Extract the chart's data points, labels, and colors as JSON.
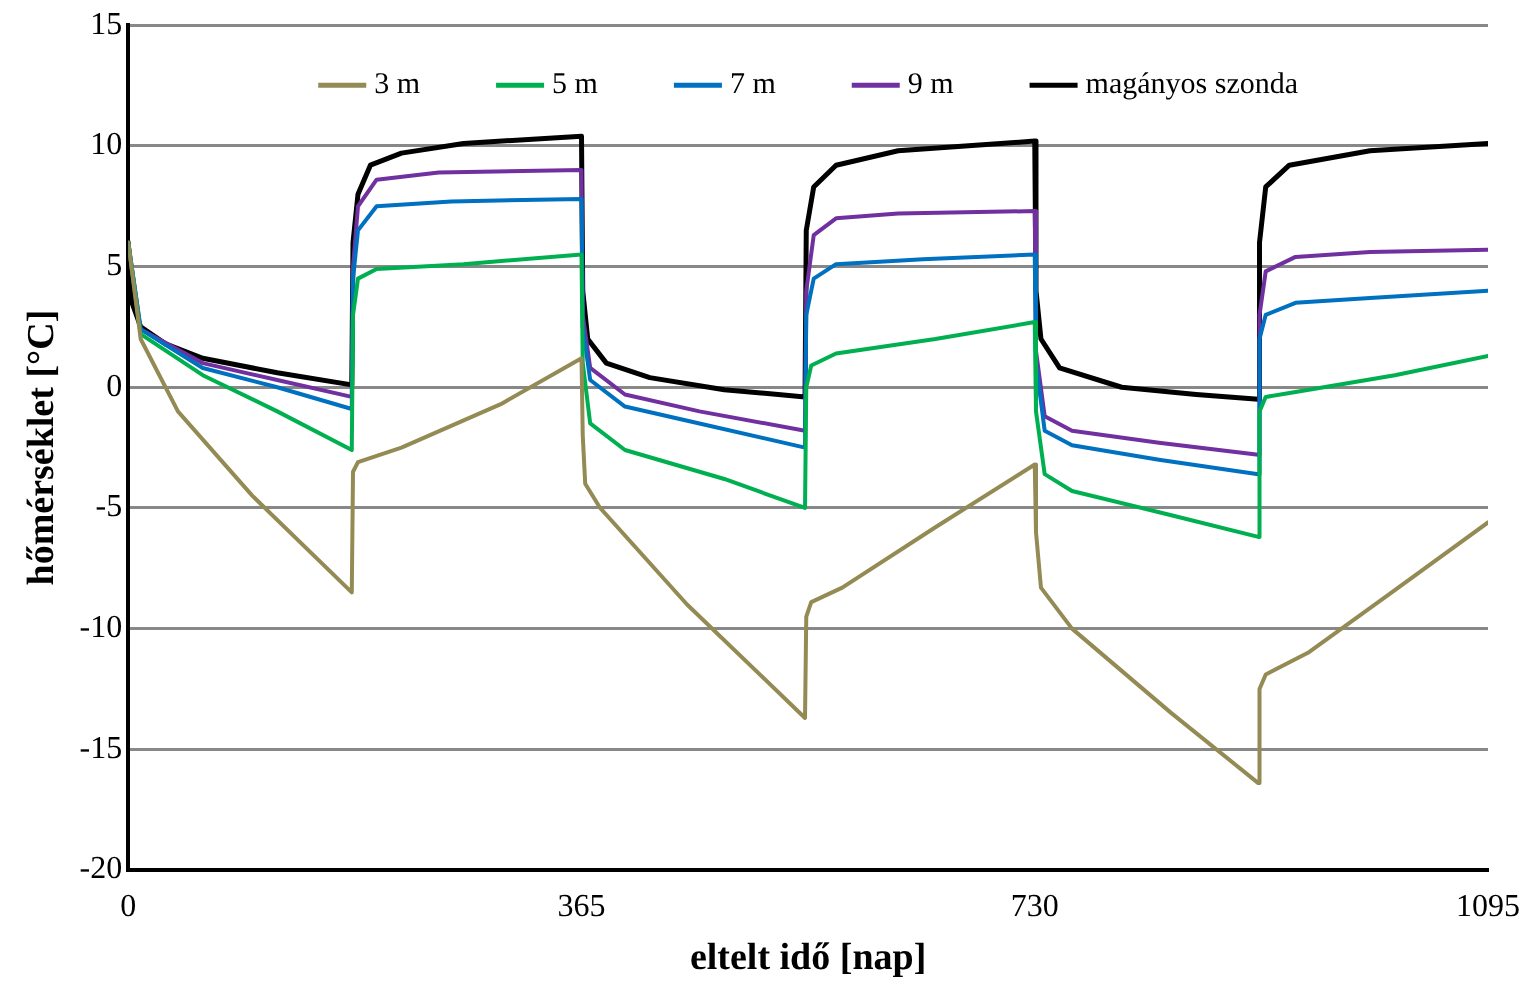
{
  "chart_data": {
    "type": "line",
    "xlabel": "eltelt idő [nap]",
    "ylabel": "hőmérséklet [°C]",
    "xlim": [
      0,
      1095
    ],
    "xticks": [
      0,
      365,
      730,
      1095
    ],
    "ylim": [
      -20,
      15
    ],
    "yticks": [
      -20,
      -15,
      -10,
      -5,
      0,
      5,
      10,
      15
    ],
    "grid": "y",
    "legend": "top",
    "marker": "none",
    "line_style": "solid",
    "series": [
      {
        "name": "3 m",
        "color": "#948a54",
        "x": [
          0,
          10,
          40,
          100,
          180,
          181,
          185,
          220,
          300,
          365,
          366,
          368,
          380,
          450,
          545,
          546,
          550,
          575,
          650,
          730,
          731,
          735,
          760,
          840,
          910,
          911,
          916,
          950,
          1020,
          1095
        ],
        "values": [
          6,
          2,
          -1,
          -4.5,
          -8.5,
          -3.5,
          -3.1,
          -2.5,
          -0.7,
          1.2,
          -2,
          -4,
          -5,
          -9,
          -13.7,
          -9.5,
          -8.9,
          -8.3,
          -5.8,
          -3.2,
          -6,
          -8.3,
          -10,
          -13.5,
          -16.4,
          -12.5,
          -11.9,
          -11,
          -8.4,
          -5.6
        ]
      },
      {
        "name": "5 m",
        "color": "#00b050",
        "x": [
          0,
          10,
          60,
          120,
          180,
          181,
          185,
          200,
          270,
          365,
          366,
          372,
          400,
          480,
          545,
          546,
          550,
          570,
          650,
          730,
          731,
          738,
          760,
          840,
          910,
          911,
          916,
          940,
          1020,
          1095
        ],
        "values": [
          6,
          2.2,
          0.5,
          -1,
          -2.6,
          3,
          4.5,
          4.9,
          5.1,
          5.5,
          1,
          -1.5,
          -2.6,
          -3.8,
          -5,
          0,
          0.9,
          1.4,
          2,
          2.7,
          -1,
          -3.6,
          -4.3,
          -5.3,
          -6.2,
          -1,
          -0.4,
          -0.2,
          0.5,
          1.3
        ]
      },
      {
        "name": "7 m",
        "color": "#0070c0",
        "x": [
          0,
          10,
          60,
          120,
          180,
          181,
          185,
          200,
          260,
          365,
          366,
          372,
          400,
          460,
          545,
          546,
          552,
          570,
          640,
          730,
          731,
          738,
          760,
          830,
          910,
          911,
          916,
          940,
          1000,
          1095
        ],
        "values": [
          6,
          2.4,
          0.8,
          0,
          -0.9,
          4.5,
          6.5,
          7.5,
          7.7,
          7.8,
          2.5,
          0.3,
          -0.8,
          -1.5,
          -2.5,
          3,
          4.5,
          5.1,
          5.3,
          5.5,
          1,
          -1.8,
          -2.4,
          -3,
          -3.6,
          2,
          3,
          3.5,
          3.7,
          4
        ]
      },
      {
        "name": "9 m",
        "color": "#7030a0",
        "x": [
          0,
          10,
          60,
          120,
          180,
          181,
          185,
          200,
          250,
          365,
          366,
          372,
          400,
          460,
          545,
          546,
          552,
          570,
          620,
          730,
          731,
          738,
          760,
          830,
          910,
          911,
          916,
          940,
          1000,
          1095
        ],
        "values": [
          6,
          2.4,
          1,
          0.3,
          -0.4,
          5,
          7.5,
          8.6,
          8.9,
          9,
          3,
          0.8,
          -0.3,
          -1,
          -1.8,
          4,
          6.3,
          7,
          7.2,
          7.3,
          1.5,
          -1.2,
          -1.8,
          -2.3,
          -2.8,
          3,
          4.8,
          5.4,
          5.6,
          5.7
        ]
      },
      {
        "name": "magányos szonda",
        "color": "#000000",
        "x": [
          0,
          3,
          10,
          30,
          60,
          120,
          180,
          181,
          185,
          195,
          220,
          270,
          365,
          366,
          370,
          385,
          420,
          480,
          545,
          546,
          552,
          570,
          620,
          730,
          731,
          735,
          750,
          800,
          860,
          910,
          911,
          916,
          935,
          1000,
          1095
        ],
        "values": [
          6,
          3.5,
          2.5,
          1.8,
          1.2,
          0.6,
          0.1,
          6,
          8,
          9.2,
          9.7,
          10.1,
          10.4,
          4,
          2,
          1,
          0.4,
          -0.1,
          -0.4,
          6.5,
          8.3,
          9.2,
          9.8,
          10.2,
          4,
          2,
          0.8,
          0,
          -0.3,
          -0.5,
          6,
          8.3,
          9.2,
          9.8,
          10.1
        ]
      }
    ]
  }
}
